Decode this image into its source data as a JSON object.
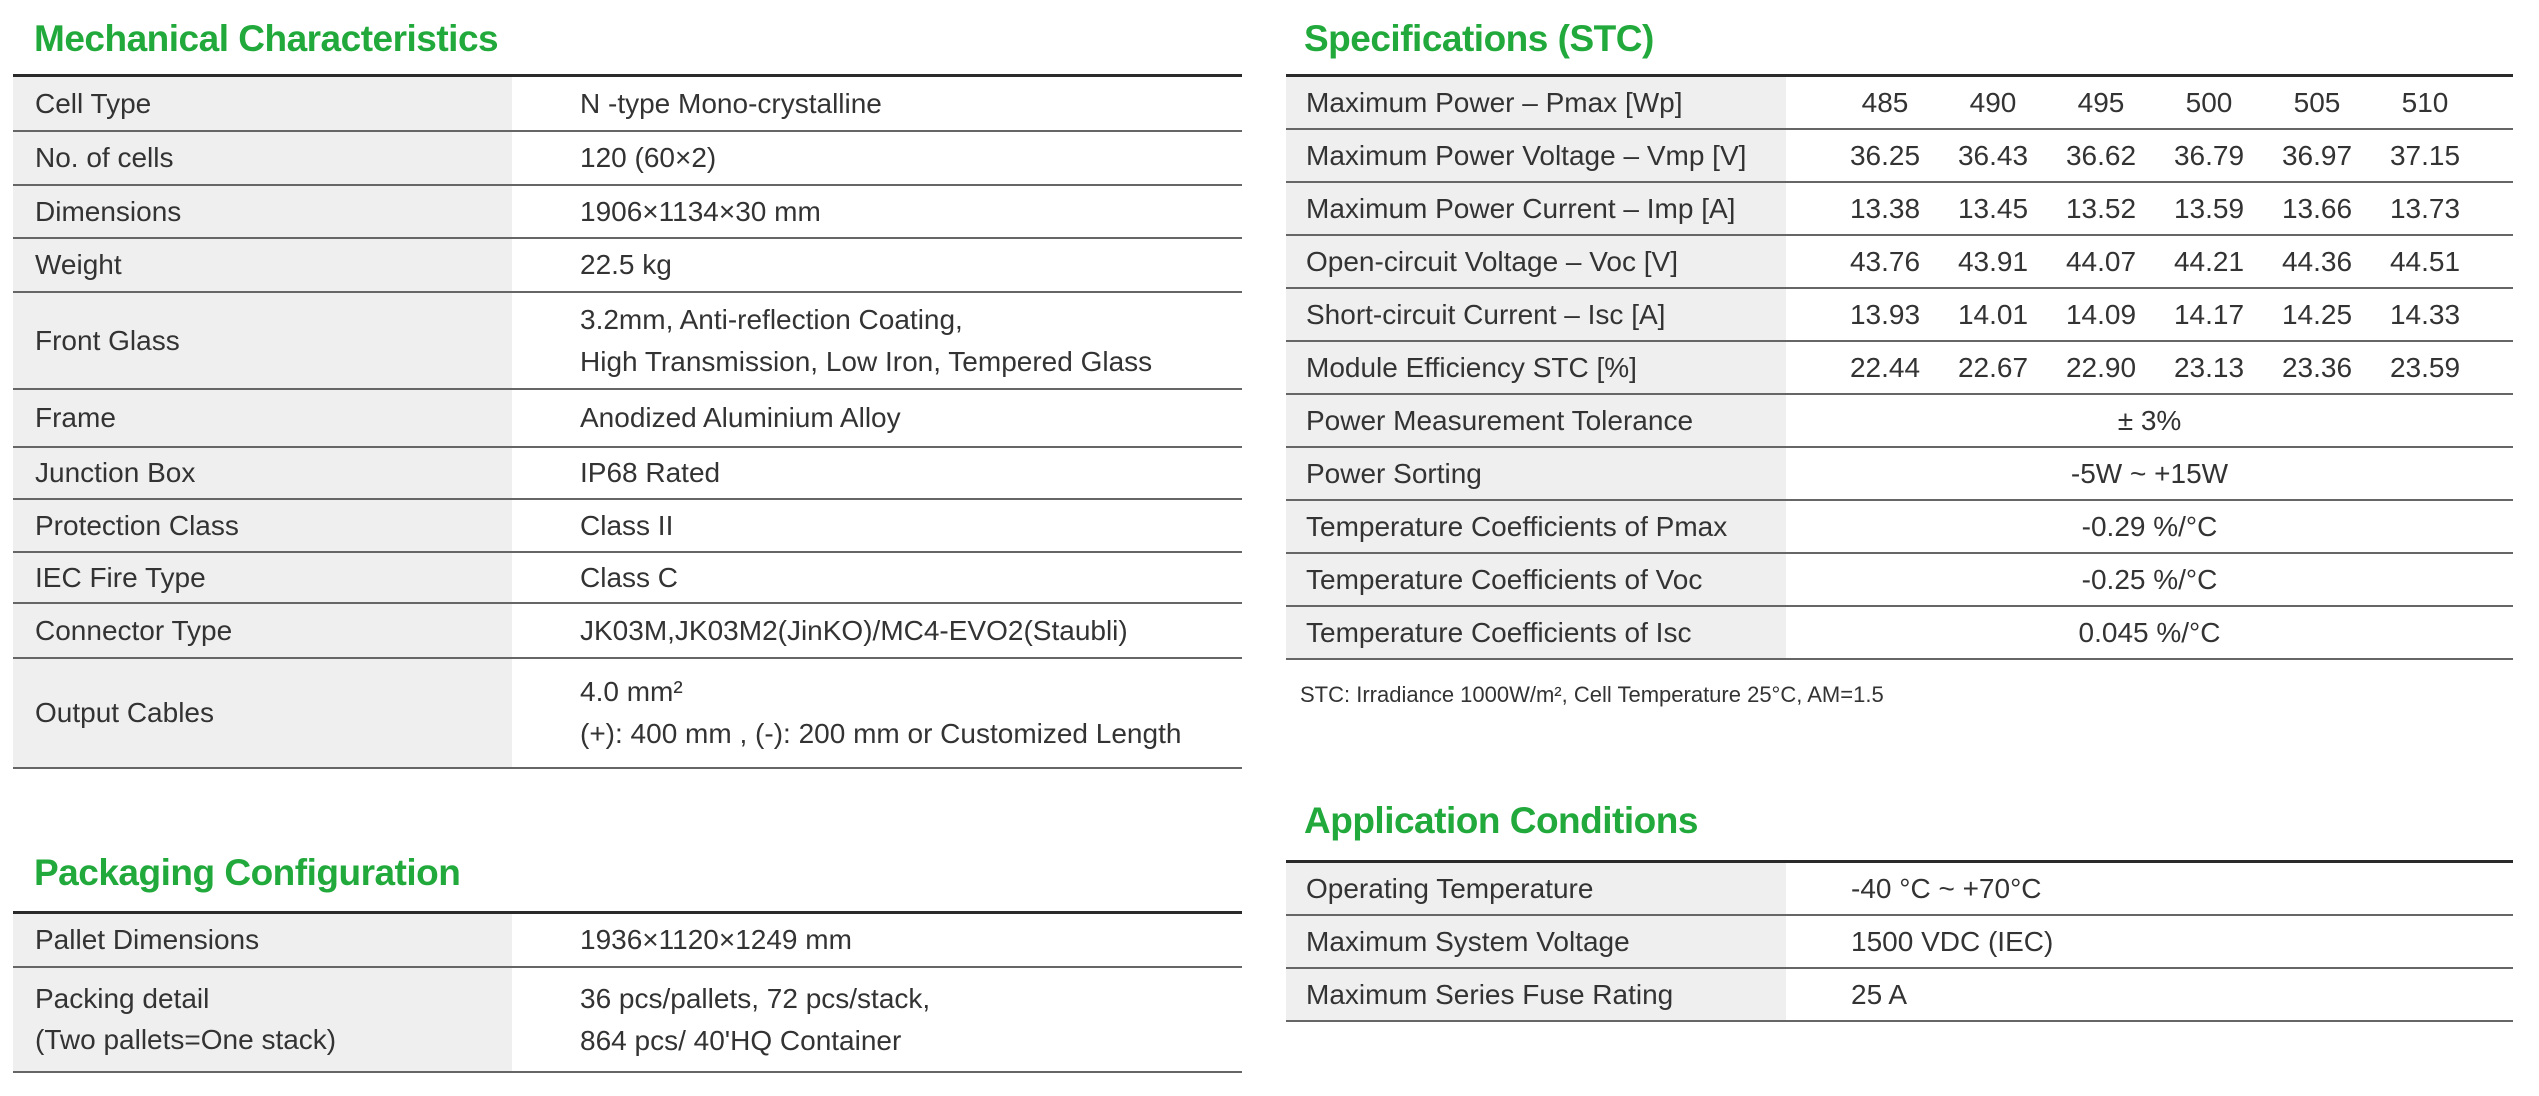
{
  "colors": {
    "heading": "#22a93c",
    "label_bg": "#efefef"
  },
  "mechanical": {
    "title": "Mechanical Characteristics",
    "rows": [
      {
        "label": "Cell Type",
        "value": [
          "N -type Mono-crystalline"
        ]
      },
      {
        "label": "No. of cells",
        "value": [
          "120 (60×2)"
        ]
      },
      {
        "label": "Dimensions",
        "value": [
          "1906×1134×30 mm"
        ]
      },
      {
        "label": "Weight",
        "value": [
          "22.5 kg"
        ]
      },
      {
        "label": "Front Glass",
        "value": [
          "3.2mm, Anti-reflection Coating,",
          "High Transmission, Low Iron, Tempered Glass"
        ]
      },
      {
        "label": "Frame",
        "value": [
          "Anodized Aluminium Alloy"
        ]
      },
      {
        "label": "Junction Box",
        "value": [
          "IP68 Rated"
        ]
      },
      {
        "label": "Protection Class",
        "value": [
          "Class II"
        ]
      },
      {
        "label": "IEC Fire Type",
        "value": [
          "Class C"
        ]
      },
      {
        "label": "Connector Type",
        "value": [
          "JK03M,JK03M2(JinKO)/MC4-EVO2(Staubli)"
        ]
      },
      {
        "label": "Output Cables",
        "value": [
          "4.0 mm²",
          "(+): 400 mm , (-): 200 mm or Customized Length"
        ]
      }
    ]
  },
  "packaging": {
    "title": "Packaging Configuration",
    "rows": [
      {
        "label": [
          "Pallet Dimensions"
        ],
        "value": [
          "1936×1120×1249 mm"
        ]
      },
      {
        "label": [
          "Packing detail",
          "(Two pallets=One stack)"
        ],
        "value": [
          "36 pcs/pallets, 72 pcs/stack,",
          "864 pcs/ 40'HQ Container"
        ]
      }
    ]
  },
  "specifications": {
    "title": "Specifications (STC)",
    "rows": [
      {
        "label": "Maximum Power – Pmax [Wp]",
        "values": [
          "485",
          "490",
          "495",
          "500",
          "505",
          "510"
        ]
      },
      {
        "label": "Maximum Power Voltage – Vmp [V]",
        "values": [
          "36.25",
          "36.43",
          "36.62",
          "36.79",
          "36.97",
          "37.15"
        ]
      },
      {
        "label": "Maximum Power Current – Imp [A]",
        "values": [
          "13.38",
          "13.45",
          "13.52",
          "13.59",
          "13.66",
          "13.73"
        ]
      },
      {
        "label": "Open-circuit Voltage – Voc [V]",
        "values": [
          "43.76",
          "43.91",
          "44.07",
          "44.21",
          "44.36",
          "44.51"
        ]
      },
      {
        "label": "Short-circuit Current – Isc [A]",
        "values": [
          "13.93",
          "14.01",
          "14.09",
          "14.17",
          "14.25",
          "14.33"
        ]
      },
      {
        "label": "Module Efficiency STC [%]",
        "values": [
          "22.44",
          "22.67",
          "22.90",
          "23.13",
          "23.36",
          "23.59"
        ]
      },
      {
        "label": "Power Measurement Tolerance",
        "span": "± 3%"
      },
      {
        "label": "Power Sorting",
        "span": "-5W ~ +15W"
      },
      {
        "label": "Temperature Coefficients of Pmax",
        "span": "-0.29 %/°C"
      },
      {
        "label": "Temperature Coefficients of Voc",
        "span": "-0.25 %/°C"
      },
      {
        "label": "Temperature Coefficients of Isc",
        "span": "0.045 %/°C"
      }
    ],
    "footnote": "STC: Irradiance 1000W/m², Cell Temperature 25°C, AM=1.5"
  },
  "application": {
    "title": "Application Conditions",
    "rows": [
      {
        "label": "Operating Temperature",
        "value": "-40 °C ~ +70°C"
      },
      {
        "label": "Maximum System Voltage",
        "value": "1500 VDC (IEC)"
      },
      {
        "label": "Maximum Series Fuse Rating",
        "value": "25 A"
      }
    ]
  }
}
